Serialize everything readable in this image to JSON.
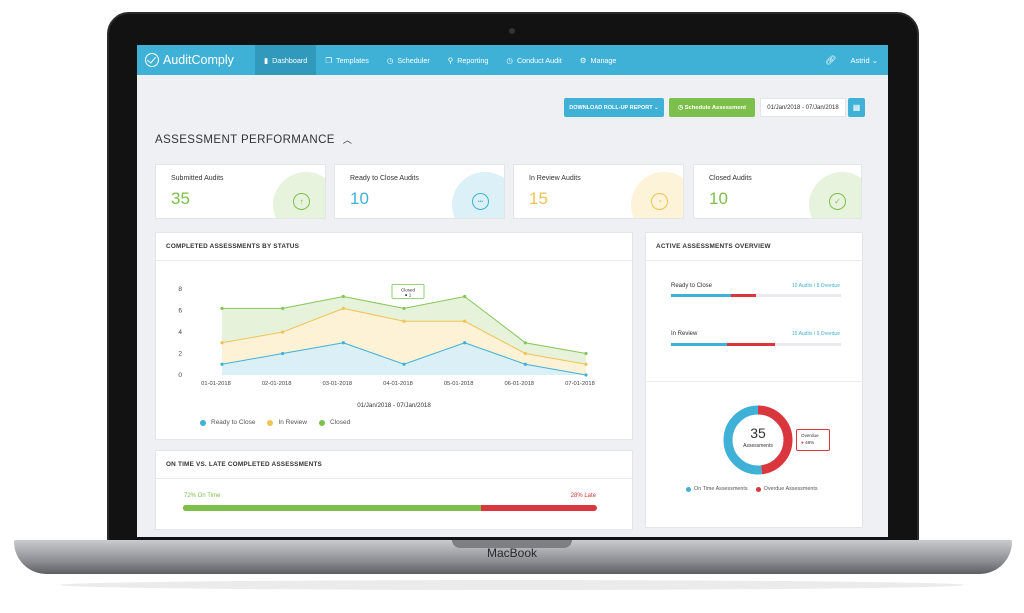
{
  "device": {
    "label": "MacBook"
  },
  "nav": {
    "logo": "AuditComply",
    "items": [
      {
        "label": "Dashboard",
        "icon": "bar-chart-icon",
        "glyph": "▮"
      },
      {
        "label": "Templates",
        "icon": "copy-icon",
        "glyph": "❐"
      },
      {
        "label": "Scheduler",
        "icon": "clock-icon",
        "glyph": "◷"
      },
      {
        "label": "Reporting",
        "icon": "search-icon",
        "glyph": "⚲"
      },
      {
        "label": "Conduct Audit",
        "icon": "clock-icon",
        "glyph": "◷"
      },
      {
        "label": "Manage",
        "icon": "gear-icon",
        "glyph": "⚙"
      }
    ],
    "user": "Astrid"
  },
  "toolbar": {
    "download_label": "DOWNLOAD ROLL-UP REPORT",
    "schedule_label": "Schedule Assessment",
    "date_range": "01/Jan/2018 - 07/Jan/2018"
  },
  "section": {
    "title": "ASSESSMENT PERFORMANCE"
  },
  "cards": [
    {
      "label": "Submitted Audits",
      "value": "35",
      "color": "#7cbf4a",
      "tint": "#e7f3dc",
      "icon": "arrow-up-circle-icon",
      "glyph": "↑"
    },
    {
      "label": "Ready to Close Audits",
      "value": "10",
      "color": "#3fb1d6",
      "tint": "#dcf0f8",
      "icon": "more-circle-icon",
      "glyph": "•••"
    },
    {
      "label": "In Review Audits",
      "value": "15",
      "color": "#f0c355",
      "tint": "#fdf3d9",
      "icon": "timer-icon",
      "glyph": "◔"
    },
    {
      "label": "Closed Audits",
      "value": "10",
      "color": "#7cbf4a",
      "tint": "#e7f3dc",
      "icon": "check-circle-icon",
      "glyph": "✓"
    }
  ],
  "completed_panel": {
    "title": "COMPLETED ASSESSMENTS BY STATUS",
    "tooltip": {
      "title": "Closed",
      "value": "1"
    }
  },
  "active_panel": {
    "title": "ACTIVE ASSESSMENTS OVERVIEW",
    "rows": [
      {
        "label": "Ready to Close",
        "audits": "10 Audits",
        "overdue": "8 Overdue",
        "ontime_fraction": 0.35,
        "overdue_fraction": 0.15
      },
      {
        "label": "In Review",
        "audits": "15 Audits",
        "overdue": "9 Overdue",
        "ontime_fraction": 0.33,
        "overdue_fraction": 0.28
      }
    ],
    "donut": {
      "total": "35",
      "label": "Assessments",
      "ontime_fraction": 0.52,
      "tooltip_title": "Overdue",
      "tooltip_value": "48%",
      "legend": [
        "On Time Assessments",
        "Overdue Assessments"
      ]
    }
  },
  "ontime_panel": {
    "title": "ON TIME VS. LATE COMPLETED ASSESSMENTS",
    "ontime_label": "72% On Time",
    "late_label": "28% Late",
    "ontime_fraction": 0.72
  },
  "colors": {
    "blue": "#3fb1d6",
    "green": "#7cbf4a",
    "yellow": "#f0c355",
    "red": "#d9363e"
  },
  "chart_data": {
    "type": "area",
    "x": [
      "01-01-2018",
      "02-01-2018",
      "03-01-2018",
      "04-01-2018",
      "05-01-2018",
      "06-01-2018",
      "07-01-2018"
    ],
    "xlabel": "01/Jan/2018 - 07/Jan/2018",
    "ylim": [
      0,
      8
    ],
    "yticks": [
      "0",
      "2",
      "4",
      "6",
      "8"
    ],
    "series": [
      {
        "name": "Ready to Close",
        "color": "#3fb1d6",
        "fill": "#dbeff7",
        "values": [
          1,
          2,
          3,
          1,
          3,
          1,
          0
        ]
      },
      {
        "name": "In Review",
        "color": "#f0c355",
        "fill": "#fdf1d6",
        "values": [
          3,
          4,
          6.2,
          5,
          5,
          2,
          1
        ]
      },
      {
        "name": "Closed",
        "color": "#86c55a",
        "fill": "#e6f2da",
        "values": [
          6.2,
          6.2,
          7.3,
          6.2,
          7.3,
          3,
          2
        ]
      }
    ],
    "legend_position": "bottom"
  }
}
